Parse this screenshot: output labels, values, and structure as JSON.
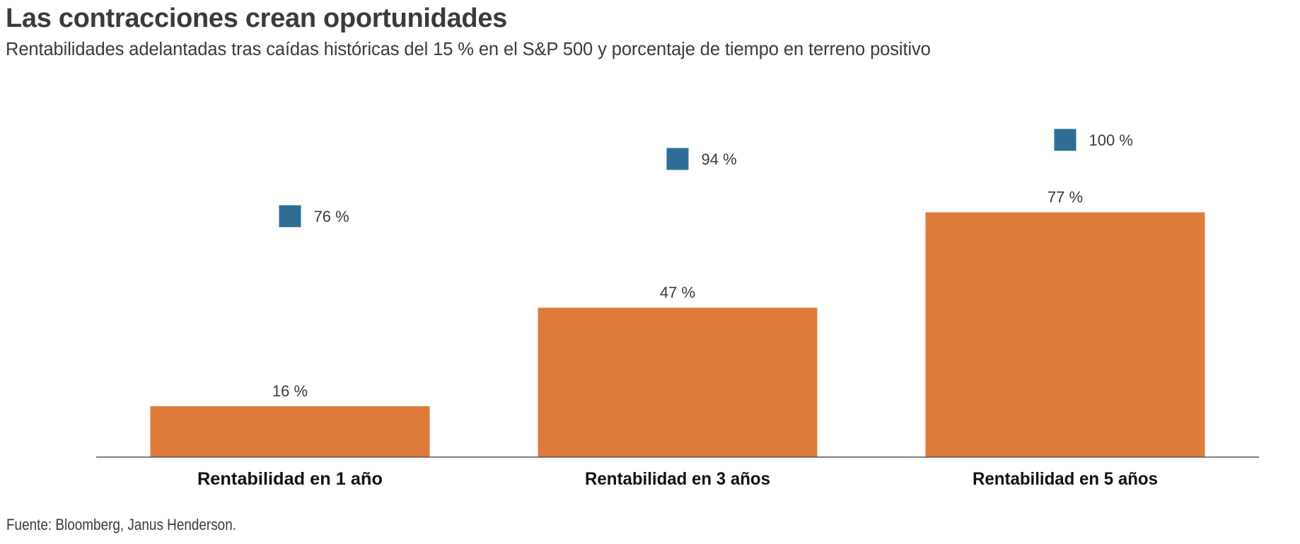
{
  "title": "Las contracciones crean oportunidades",
  "subtitle": "Rentabilidades adelantadas tras caídas históricas del 15 % en el S&P 500 y porcentaje de tiempo en terreno positivo",
  "footer": "Fuente: Bloomberg, Janus Henderson.",
  "colors": {
    "bar": "#df7c3c",
    "marker": "#2e6e94",
    "axis": "#555555",
    "text": "#3a3a3e"
  },
  "chart_data": {
    "type": "bar",
    "title": "Las contracciones crean oportunidades",
    "subtitle": "Rentabilidades adelantadas tras caídas históricas del 15 % en el S&P 500 y porcentaje de tiempo en terreno positivo",
    "categories": [
      "Rentabilidad en 1 año",
      "Rentabilidad en 3 años",
      "Rentabilidad en 5 años"
    ],
    "series": [
      {
        "name": "Rentabilidad adelantada",
        "mark": "bar",
        "values": [
          16,
          47,
          77
        ],
        "labels": [
          "16 %",
          "47 %",
          "77 %"
        ]
      },
      {
        "name": "Porcentaje de tiempo en terreno positivo",
        "mark": "square-marker",
        "values": [
          76,
          94,
          100
        ],
        "labels": [
          "76 %",
          "94 %",
          "100 %"
        ]
      }
    ],
    "xlabel": "",
    "ylabel": "",
    "ylim": [
      0,
      100
    ],
    "grid": false,
    "legend": "none",
    "source": "Fuente: Bloomberg, Janus Henderson."
  }
}
